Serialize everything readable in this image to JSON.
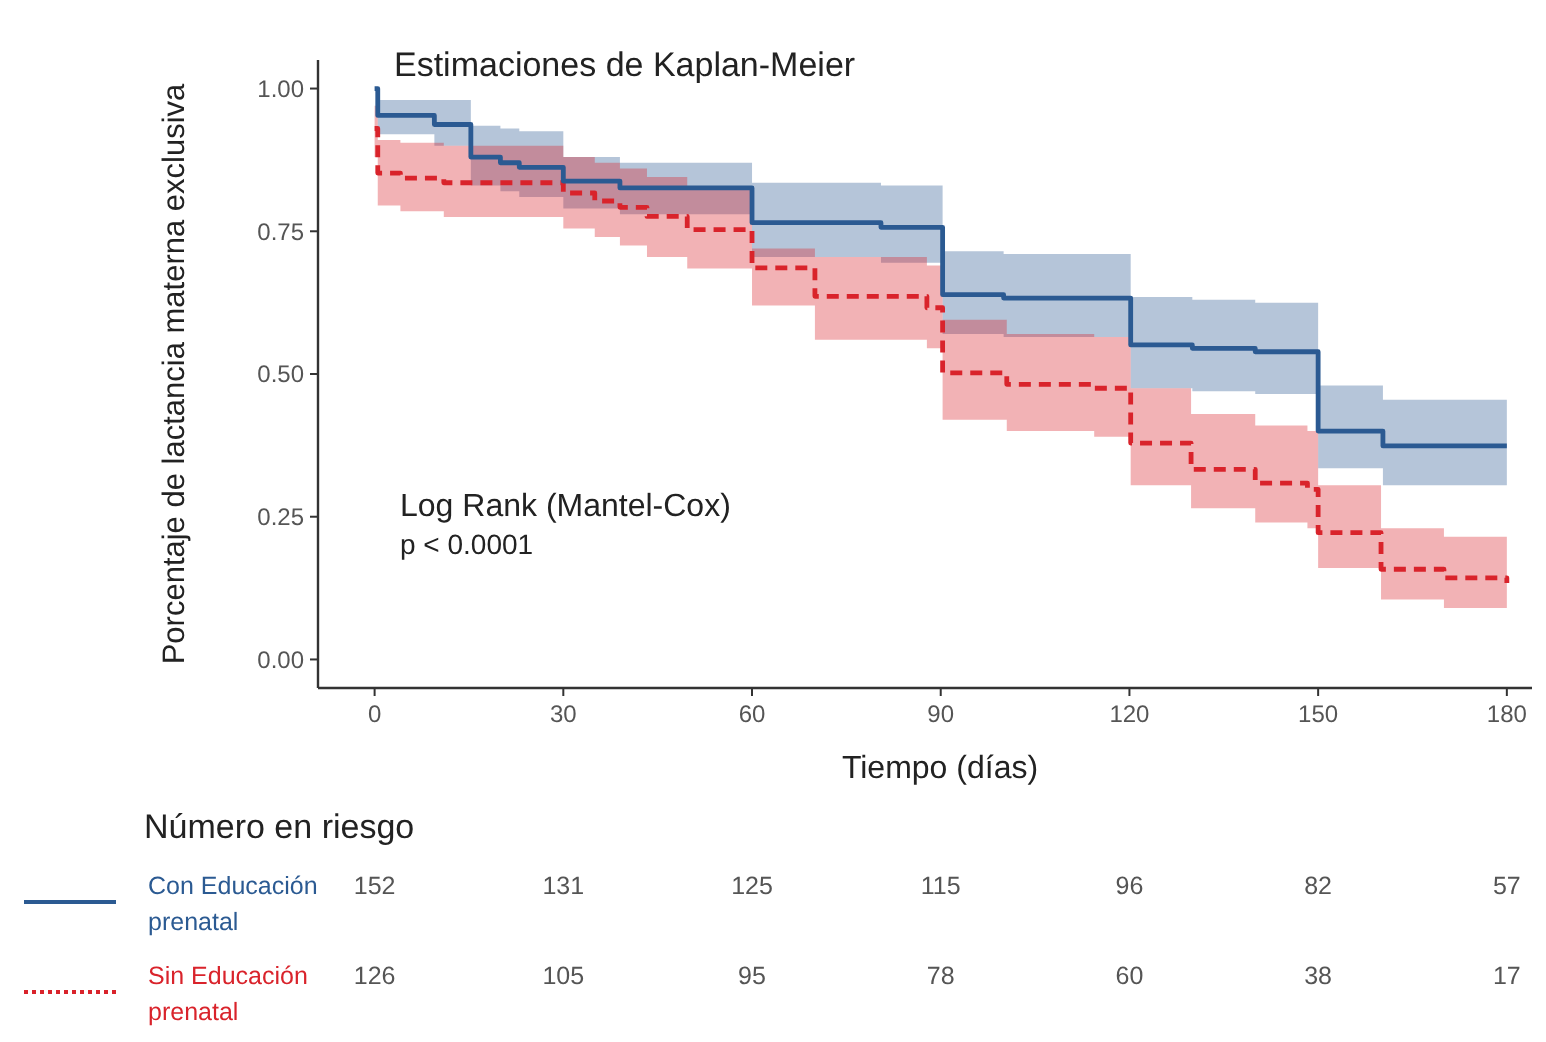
{
  "chart_data": {
    "type": "step",
    "title": "Estimaciones de Kaplan-Meier",
    "xlabel": "Tiempo (días)",
    "ylabel": "Porcentaje de lactancia materna exclusiva",
    "annotations": [
      "Log Rank (Mantel-Cox)",
      "p < 0.0001",
      "Número en riesgo",
      "152",
      "131",
      "125",
      "115",
      "96",
      "82",
      "57",
      "126",
      "105",
      "95",
      "78",
      "60",
      "38",
      "17"
    ],
    "xlim": [
      -9,
      184
    ],
    "ylim": [
      -0.05,
      1.05
    ],
    "xticks": [
      0,
      30,
      60,
      90,
      120,
      150,
      180
    ],
    "yticks": [
      {
        "value": 0,
        "label": "0.00"
      },
      {
        "value": 0.25,
        "label": "0.25"
      },
      {
        "value": 0.5,
        "label": "0.50"
      },
      {
        "value": 0.75,
        "label": "0.75"
      },
      {
        "value": 1,
        "label": "1.00"
      }
    ],
    "grid": false,
    "legend": "bottom left",
    "series": [
      {
        "name": "Con Educación prenatal",
        "color": "#2b5a92",
        "line_style": "solid",
        "x": [
          0,
          0.5,
          9.5,
          15.3,
          20,
          23,
          30,
          39,
          60,
          80.5,
          90.3,
          100,
          120.2,
          130,
          140,
          150,
          160.3,
          180
        ],
        "values": [
          1.0,
          0.953,
          0.937,
          0.88,
          0.87,
          0.862,
          0.838,
          0.826,
          0.765,
          0.757,
          0.639,
          0.633,
          0.551,
          0.545,
          0.539,
          0.4,
          0.374,
          0.374
        ],
        "upper": [
          1.0,
          0.98,
          0.98,
          0.935,
          0.93,
          0.925,
          0.88,
          0.87,
          0.835,
          0.83,
          0.715,
          0.71,
          0.635,
          0.63,
          0.625,
          0.48,
          0.455,
          0.455
        ],
        "lower": [
          1.0,
          0.92,
          0.9,
          0.83,
          0.82,
          0.81,
          0.79,
          0.78,
          0.705,
          0.695,
          0.57,
          0.565,
          0.475,
          0.47,
          0.465,
          0.335,
          0.305,
          0.305
        ]
      },
      {
        "name": "Sin Educación prenatal",
        "color": "#d9232b",
        "line_style": "dashed",
        "x": [
          0,
          0.5,
          4.1,
          11,
          30,
          35,
          39,
          43.3,
          49.7,
          60,
          70,
          87.8,
          90.3,
          100.5,
          114.4,
          120.2,
          129.8,
          140,
          148.3,
          150,
          160,
          170,
          180
        ],
        "values": [
          0.93,
          0.852,
          0.843,
          0.835,
          0.817,
          0.803,
          0.792,
          0.776,
          0.753,
          0.686,
          0.636,
          0.616,
          0.502,
          0.482,
          0.475,
          0.379,
          0.333,
          0.309,
          0.298,
          0.222,
          0.158,
          0.143,
          0.134
        ],
        "upper": [
          0.97,
          0.91,
          0.905,
          0.9,
          0.88,
          0.87,
          0.86,
          0.845,
          0.825,
          0.72,
          0.705,
          0.69,
          0.595,
          0.57,
          0.565,
          0.475,
          0.43,
          0.41,
          0.4,
          0.305,
          0.23,
          0.215,
          0.21
        ],
        "lower": [
          0.88,
          0.795,
          0.785,
          0.775,
          0.755,
          0.74,
          0.725,
          0.705,
          0.685,
          0.62,
          0.56,
          0.545,
          0.42,
          0.4,
          0.39,
          0.305,
          0.265,
          0.24,
          0.23,
          0.16,
          0.105,
          0.09,
          0.085
        ]
      }
    ]
  }
}
